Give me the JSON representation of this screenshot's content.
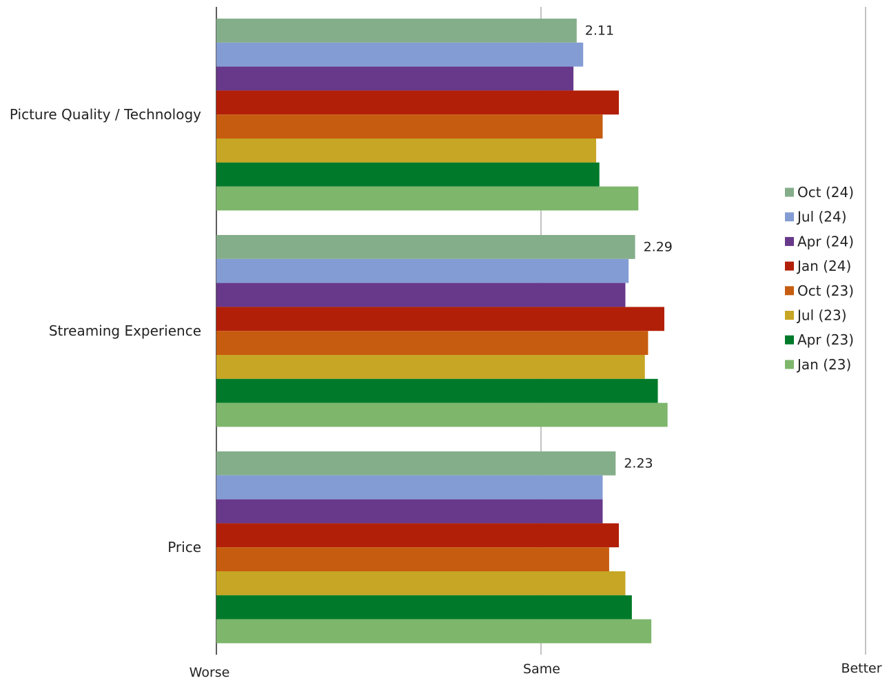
{
  "chart_data": {
    "type": "bar",
    "orientation": "horizontal",
    "categories": [
      "Picture Quality / Technology",
      "Streaming Experience",
      "Price"
    ],
    "xlim": [
      1,
      3
    ],
    "x_ticks": [
      {
        "value": 1,
        "label": "Worse"
      },
      {
        "value": 2,
        "label": "Same"
      },
      {
        "value": 3,
        "label": "Better"
      }
    ],
    "grid": true,
    "legend_position": "right",
    "series": [
      {
        "name": "Oct (24)",
        "color": "#84ae8a",
        "values": [
          2.11,
          2.29,
          2.23
        ]
      },
      {
        "name": "Jul (24)",
        "color": "#849cd4",
        "values": [
          2.13,
          2.27,
          2.19
        ]
      },
      {
        "name": "Apr (24)",
        "color": "#68388a",
        "values": [
          2.1,
          2.26,
          2.19
        ]
      },
      {
        "name": "Jan (24)",
        "color": "#b21f08",
        "values": [
          2.24,
          2.38,
          2.24
        ]
      },
      {
        "name": "Oct (23)",
        "color": "#c65c10",
        "values": [
          2.19,
          2.33,
          2.21
        ]
      },
      {
        "name": "Jul (23)",
        "color": "#c6a624",
        "values": [
          2.17,
          2.32,
          2.26
        ]
      },
      {
        "name": "Apr (23)",
        "color": "#007a2a",
        "values": [
          2.18,
          2.36,
          2.28
        ]
      },
      {
        "name": "Jan (23)",
        "color": "#7eb66c",
        "values": [
          2.3,
          2.39,
          2.34
        ]
      }
    ],
    "data_labels": [
      {
        "category": "Picture Quality / Technology",
        "series": "Oct (24)",
        "text": "2.11"
      },
      {
        "category": "Streaming Experience",
        "series": "Oct (24)",
        "text": "2.29"
      },
      {
        "category": "Price",
        "series": "Oct (24)",
        "text": "2.23"
      }
    ]
  }
}
